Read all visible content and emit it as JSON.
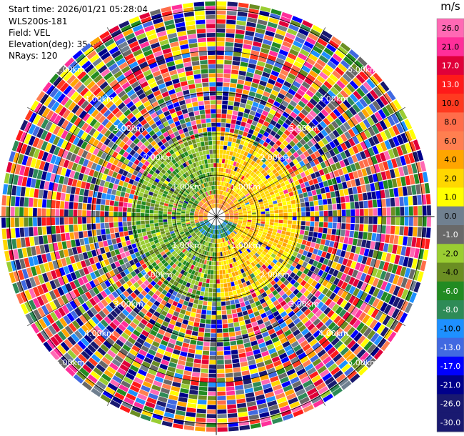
{
  "header": {
    "start_time": "Start time: 2026/01/21 05:28:04",
    "instrument": "WLS200s-181",
    "field": "Field: VEL",
    "elevation": "Elevation(deg): 35.00",
    "nrays": "NRays: 120"
  },
  "chart_data": {
    "type": "heatmap",
    "projection": "polar (PPI scan)",
    "field": "VEL",
    "elevation_deg": 35.0,
    "n_rays": 120,
    "range_rings": [
      {
        "label": "1.00km",
        "value": 1
      },
      {
        "label": "2.00km",
        "value": 2
      },
      {
        "label": "3.00km",
        "value": 3
      },
      {
        "label": "4.00km",
        "value": 4
      },
      {
        "label": "5.00km",
        "value": 5
      }
    ],
    "range_extent_km": 5.2,
    "crosshair_lines": true,
    "colorbar": {
      "unit": "m/s",
      "ticks": [
        "26.0",
        "21.0",
        "17.0",
        "13.0",
        "10.0",
        "8.0",
        "6.0",
        "4.0",
        "2.0",
        "1.0",
        "0.0",
        "-1.0",
        "-2.0",
        "-4.0",
        "-6.0",
        "-8.0",
        "-10.0",
        "-13.0",
        "-17.0",
        "-21.0",
        "-26.0",
        "-30.0"
      ],
      "colors": [
        "#ff69b4",
        "#ff2f9a",
        "#e0003a",
        "#ff1a1a",
        "#ff3a20",
        "#ff6d4a",
        "#ff7f50",
        "#ffa500",
        "#ffd700",
        "#ffff00",
        "#708090",
        "#696969",
        "#9acd32",
        "#6b8e23",
        "#228b22",
        "#2e8b57",
        "#1e90ff",
        "#4169e1",
        "#0000ff",
        "#00008b",
        "#191970",
        "#191970"
      ]
    },
    "pattern_description_zones": [
      {
        "range_km": [
          0,
          0.5
        ],
        "dominant": [
          "2.0",
          "4.0",
          "-2.0",
          "-8.0"
        ]
      },
      {
        "range_km": [
          0.5,
          2.0
        ],
        "dominant": [
          "2.0",
          "1.0",
          "-2.0",
          "-4.0"
        ]
      },
      {
        "range_km": [
          2.0,
          5.2
        ],
        "dominant": "noise (all classes)"
      }
    ]
  }
}
